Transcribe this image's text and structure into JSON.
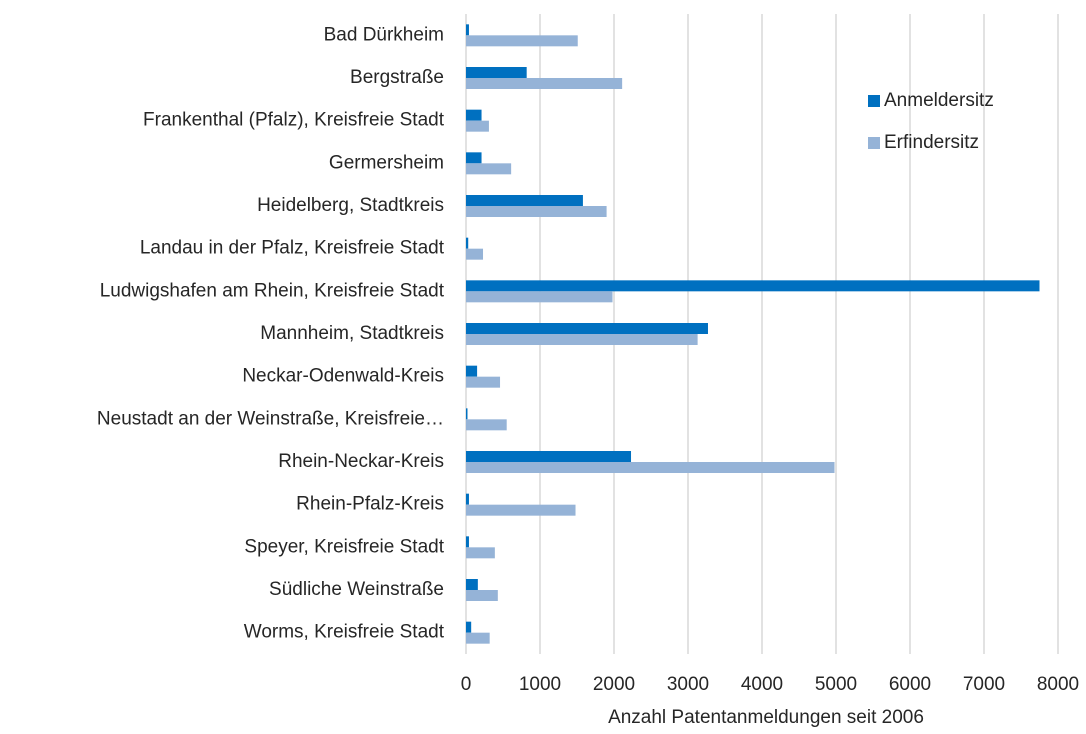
{
  "chart_data": {
    "type": "hbar",
    "x_label": "Anzahl Patentanmeldungen seit 2006",
    "categories": [
      "Bad Dürkheim",
      "Bergstraße",
      "Frankenthal (Pfalz), Kreisfreie Stadt",
      "Germersheim",
      "Heidelberg, Stadtkreis",
      "Landau in der Pfalz, Kreisfreie Stadt",
      "Ludwigshafen am Rhein, Kreisfreie Stadt",
      "Mannheim, Stadtkreis",
      "Neckar-Odenwald-Kreis",
      "Neustadt an der Weinstraße, Kreisfreie…",
      "Rhein-Neckar-Kreis",
      "Rhein-Pfalz-Kreis",
      "Speyer, Kreisfreie Stadt",
      "Südliche Weinstraße",
      "Worms, Kreisfreie Stadt"
    ],
    "series": [
      {
        "name": "Anmeldersitz",
        "color": "#0070c0",
        "values": [
          40,
          820,
          210,
          210,
          1580,
          30,
          7750,
          3270,
          150,
          20,
          2230,
          40,
          40,
          160,
          70
        ]
      },
      {
        "name": "Erfindersitz",
        "color": "#95b3d7",
        "values": [
          1510,
          2110,
          310,
          610,
          1900,
          230,
          1980,
          3130,
          460,
          550,
          4980,
          1480,
          390,
          430,
          320
        ]
      }
    ],
    "xlim": [
      0,
      8000
    ],
    "xticks": [
      0,
      1000,
      2000,
      3000,
      4000,
      5000,
      6000,
      7000,
      8000
    ],
    "grid": true,
    "legend": "top-right"
  }
}
